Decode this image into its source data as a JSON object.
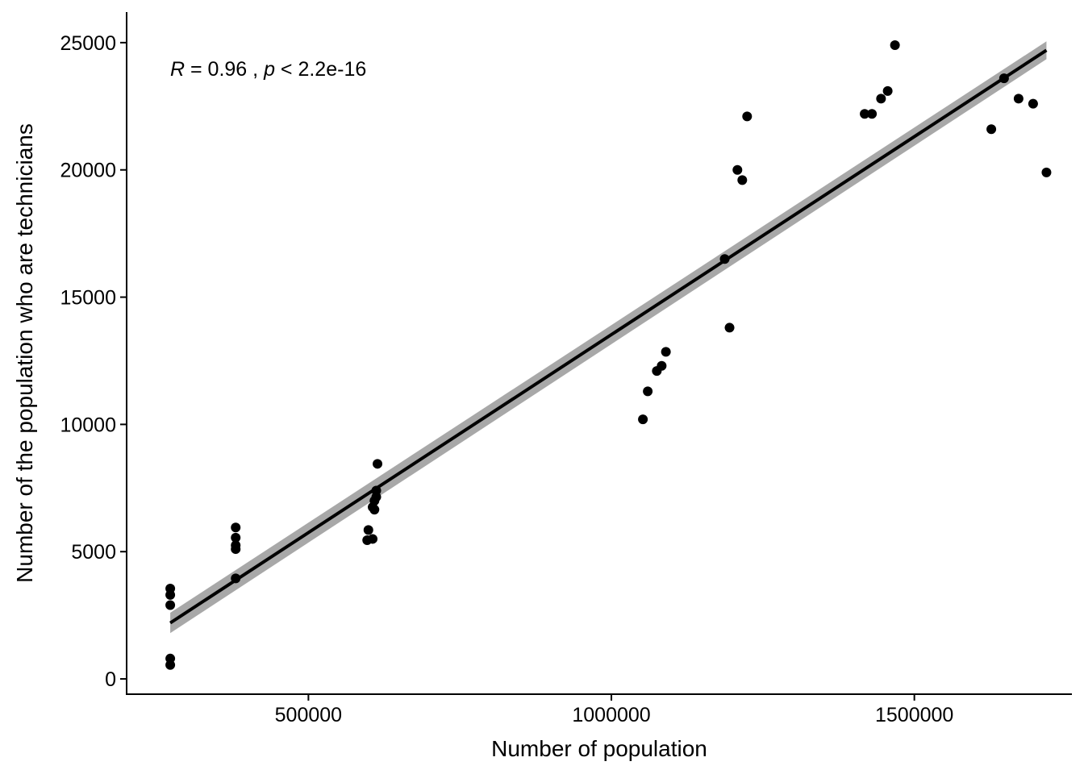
{
  "chart_data": {
    "type": "scatter",
    "xlabel": "Number of population",
    "ylabel": "Number of the population who are technicians",
    "xlim": [
      200000,
      1760000
    ],
    "ylim": [
      -600,
      26200
    ],
    "xticks": [
      500000,
      1000000,
      1500000
    ],
    "xtick_labels": [
      "500000",
      "1000000",
      "1500000"
    ],
    "yticks": [
      0,
      5000,
      10000,
      15000,
      20000,
      25000
    ],
    "ytick_labels": [
      "0",
      "5000",
      "10000",
      "15000",
      "20000",
      "25000"
    ],
    "grid": false,
    "annotation": {
      "r_label": "R",
      "r_text": " = 0.96 , ",
      "p_label": "p",
      "p_text": " < 2.2e-16"
    },
    "colors": {
      "points": "#000000",
      "fit_line": "#000000",
      "ribbon": "#999999"
    },
    "series": [
      {
        "points": [
          [
            272000,
            550
          ],
          [
            272000,
            800
          ],
          [
            272000,
            2900
          ],
          [
            272000,
            3300
          ],
          [
            272000,
            3550
          ],
          [
            380000,
            3950
          ],
          [
            380000,
            5100
          ],
          [
            380000,
            5250
          ],
          [
            380000,
            5550
          ],
          [
            380000,
            5950
          ],
          [
            597000,
            5450
          ],
          [
            599000,
            5850
          ],
          [
            606000,
            5500
          ],
          [
            606000,
            6750
          ],
          [
            609000,
            7000
          ],
          [
            609000,
            6650
          ],
          [
            612000,
            7150
          ],
          [
            612000,
            7400
          ],
          [
            614000,
            8450
          ],
          [
            1052000,
            10200
          ],
          [
            1060000,
            11300
          ],
          [
            1075000,
            12100
          ],
          [
            1083000,
            12300
          ],
          [
            1090000,
            12850
          ],
          [
            1187000,
            16500
          ],
          [
            1195000,
            13800
          ],
          [
            1208000,
            20000
          ],
          [
            1216000,
            19600
          ],
          [
            1224000,
            22100
          ],
          [
            1418000,
            22200
          ],
          [
            1430000,
            22200
          ],
          [
            1445000,
            22800
          ],
          [
            1456000,
            23100
          ],
          [
            1468000,
            24900
          ],
          [
            1627000,
            21600
          ],
          [
            1648000,
            23600
          ],
          [
            1672000,
            22800
          ],
          [
            1696000,
            22600
          ],
          [
            1718000,
            19900
          ]
        ]
      }
    ],
    "fit": {
      "x": [
        272000,
        1718000
      ],
      "y": [
        2200,
        24700
      ],
      "ribbon_upper": [
        2600,
        25050
      ],
      "ribbon_lower": [
        1800,
        24350
      ]
    }
  }
}
